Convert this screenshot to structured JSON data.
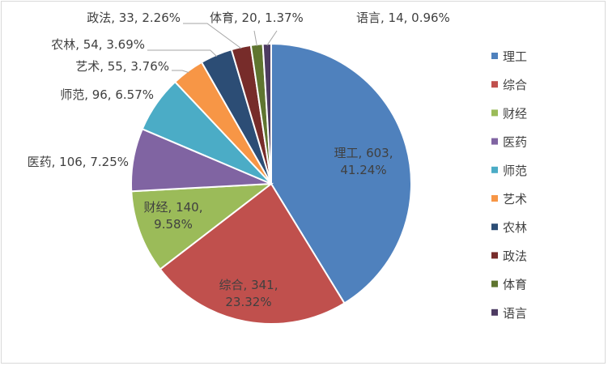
{
  "chart_data": {
    "type": "pie",
    "title": "",
    "categories": [
      "理工",
      "综合",
      "财经",
      "医药",
      "师范",
      "艺术",
      "农林",
      "政法",
      "体育",
      "语言"
    ],
    "values": [
      603,
      341,
      140,
      106,
      96,
      55,
      54,
      33,
      20,
      14
    ],
    "percent_labels": [
      "41.24%",
      "23.32%",
      "9.58%",
      "7.25%",
      "6.57%",
      "3.76%",
      "3.69%",
      "2.26%",
      "1.37%",
      "0.96%"
    ],
    "data_labels": [
      [
        "理工, 603,",
        "41.24%"
      ],
      [
        "综合, 341,",
        "23.32%"
      ],
      [
        "财经, 140,",
        "9.58%"
      ],
      [
        "医药, 106, 7.25%"
      ],
      [
        "师范, 96, 6.57%"
      ],
      [
        "艺术, 55, 3.76%"
      ],
      [
        "农林, 54, 3.69%"
      ],
      [
        "政法, 33, 2.26%"
      ],
      [
        "体育, 20, 1.37%"
      ],
      [
        "语言, 14, 0.96%"
      ]
    ],
    "colors": [
      "#4f81bd",
      "#c0504d",
      "#9bbb59",
      "#8064a2",
      "#4bacc6",
      "#f79646",
      "#2c4d75",
      "#772c2a",
      "#5f7530",
      "#4d3b62"
    ],
    "legend_position": "right",
    "start_angle": "12 o'clock",
    "direction": "clockwise"
  }
}
